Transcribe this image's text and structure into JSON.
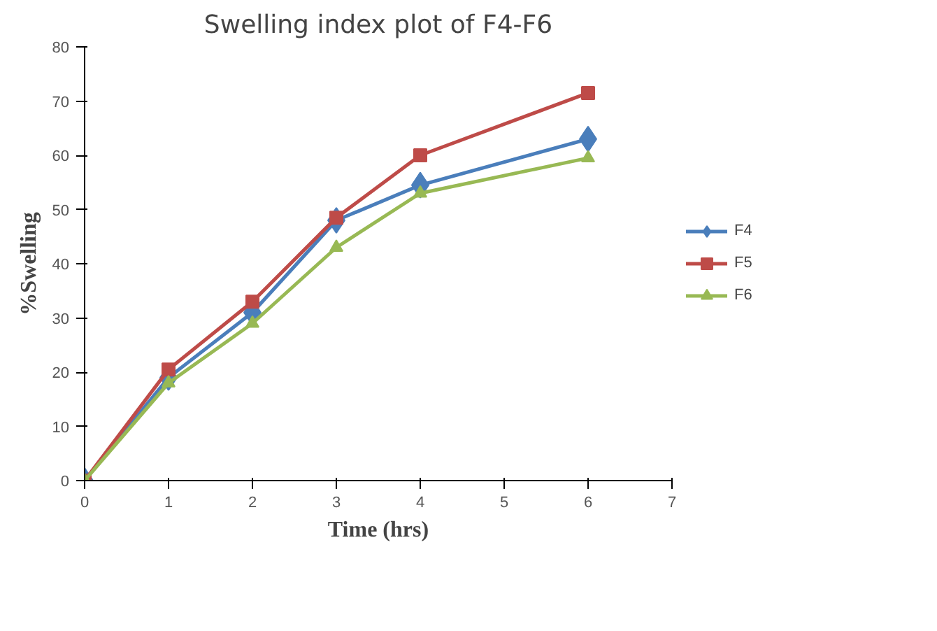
{
  "chart_data": {
    "type": "line",
    "title": "Swelling index plot of F4-F6",
    "xlabel": "Time (hrs)",
    "ylabel": "%Swelling",
    "x": [
      0,
      1,
      2,
      3,
      4,
      6
    ],
    "series": [
      {
        "name": "F4",
        "color": "#4a7ebb",
        "marker": "diamond",
        "values": [
          0,
          19,
          31,
          48,
          54.5,
          63
        ]
      },
      {
        "name": "F5",
        "color": "#be4b48",
        "marker": "square",
        "values": [
          0,
          20.5,
          33,
          48.5,
          60,
          71.5
        ]
      },
      {
        "name": "F6",
        "color": "#98b954",
        "marker": "triangle",
        "values": [
          0,
          18,
          29,
          43,
          53,
          59.5
        ]
      }
    ],
    "xlim": [
      0,
      7
    ],
    "xticks": [
      0,
      1,
      2,
      3,
      4,
      5,
      6,
      7
    ],
    "ylim": [
      0,
      80
    ],
    "yticks": [
      0,
      10,
      20,
      30,
      40,
      50,
      60,
      70,
      80
    ],
    "grid": false,
    "legend": "right",
    "line_style": "solid"
  }
}
